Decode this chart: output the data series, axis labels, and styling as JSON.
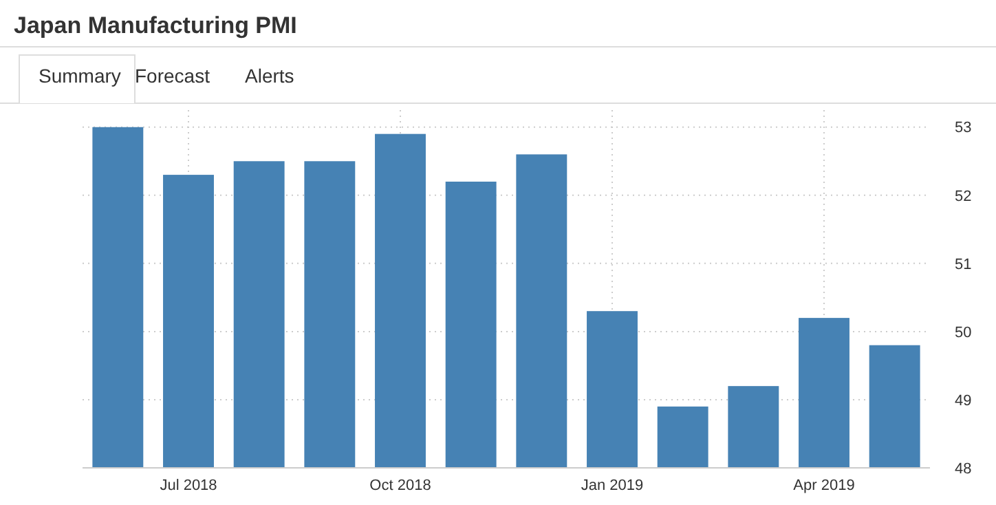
{
  "chart_data": {
    "type": "bar",
    "title": "Japan Manufacturing PMI",
    "annotations": [
      "Summary",
      "Forecast",
      "Alerts"
    ],
    "categories": [
      null,
      "Jul 2018",
      null,
      null,
      "Oct 2018",
      null,
      null,
      "Jan 2019",
      null,
      null,
      "Apr 2019",
      null
    ],
    "values": [
      53.0,
      52.3,
      52.5,
      52.5,
      52.9,
      52.2,
      52.6,
      50.3,
      48.9,
      49.2,
      50.2,
      49.8
    ],
    "color": "#4682b4",
    "ylim": [
      48,
      53.25
    ],
    "yticks": [
      48,
      49,
      50,
      51,
      52,
      53
    ],
    "grid": true
  }
}
